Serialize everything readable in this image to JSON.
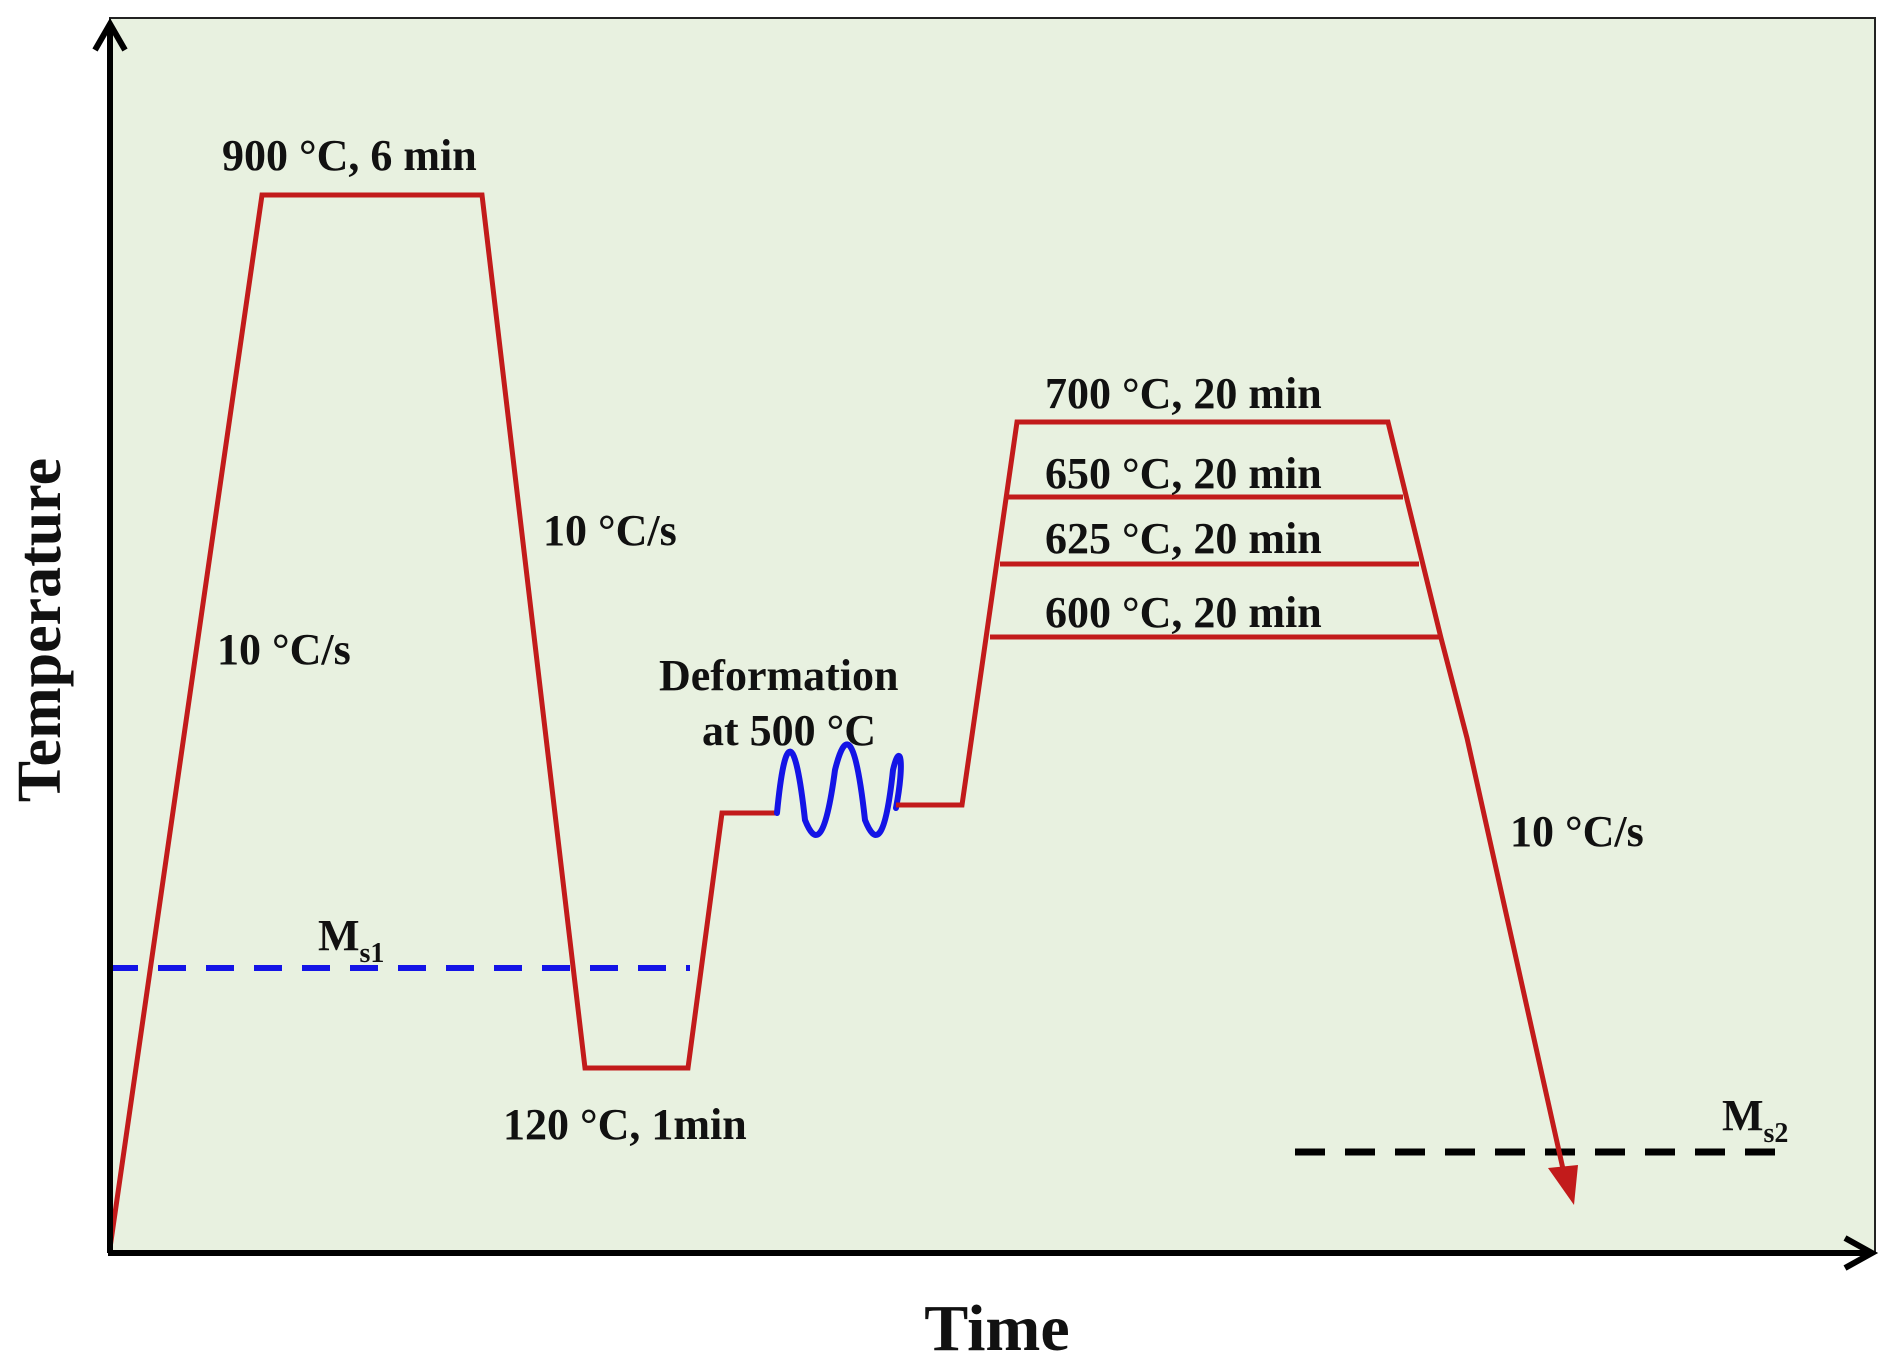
{
  "colors": {
    "plot_background": "#e8f1e0",
    "profile_line": "#c21b1b",
    "ms1_line": "#1414e6",
    "ms2_line": "#000000",
    "deformation_wave": "#1414e6",
    "axes": "#000000"
  },
  "axes": {
    "x_label": "Time",
    "y_label": "Temperature"
  },
  "labels": {
    "austenitize": "900 °C, 6 min",
    "heating_rate": "10 °C/s",
    "cooling_rate_1": "10 °C/s",
    "quench_hold": "120 °C, 1min",
    "deformation_line1": "Deformation",
    "deformation_line2": "at 500 °C",
    "temper_700": "700 °C, 20 min",
    "temper_650": "650 °C, 20 min",
    "temper_625": "625 °C, 20 min",
    "temper_600": "600 °C, 20 min",
    "cooling_rate_2": "10 °C/s",
    "ms1_main": "M",
    "ms1_sub": "s1",
    "ms2_main": "M",
    "ms2_sub": "s2"
  }
}
